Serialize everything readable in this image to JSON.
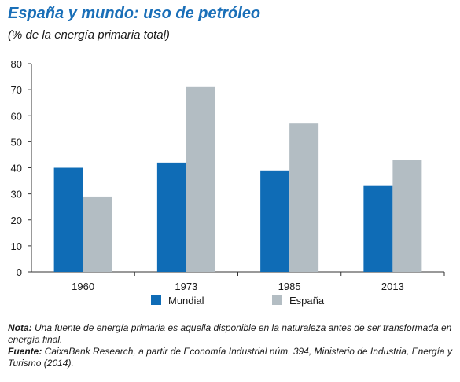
{
  "header": {
    "title": "España y mundo: uso de petróleo",
    "subtitle": "(% de la energía primaria total)"
  },
  "notes": {
    "nota_label": "Nota:",
    "nota_text": " Una fuente de energía primaria es aquella disponible en la naturaleza antes de ser transformada en energía final.",
    "fuente_label": "Fuente:",
    "fuente_text": " CaixaBank Research, a partir de Economía Industrial núm. 394, Ministerio de Industria, Energía y Turismo (2014)."
  },
  "colors": {
    "Mundial": "#0f6cb6",
    "España": "#b3bdc3",
    "title": "#1a6fb8"
  },
  "chart_data": {
    "type": "bar",
    "title": "España y mundo: uso de petróleo",
    "subtitle": "(% de la energía primaria total)",
    "xlabel": "",
    "ylabel": "",
    "categories": [
      "1960",
      "1973",
      "1985",
      "2013"
    ],
    "series": [
      {
        "name": "Mundial",
        "values": [
          40,
          42,
          39,
          33
        ]
      },
      {
        "name": "España",
        "values": [
          29,
          71,
          57,
          43
        ]
      }
    ],
    "ylim": [
      0,
      80
    ],
    "yticks": [
      0,
      10,
      20,
      30,
      40,
      50,
      60,
      70,
      80
    ],
    "grid": false,
    "legend": "bottom"
  }
}
